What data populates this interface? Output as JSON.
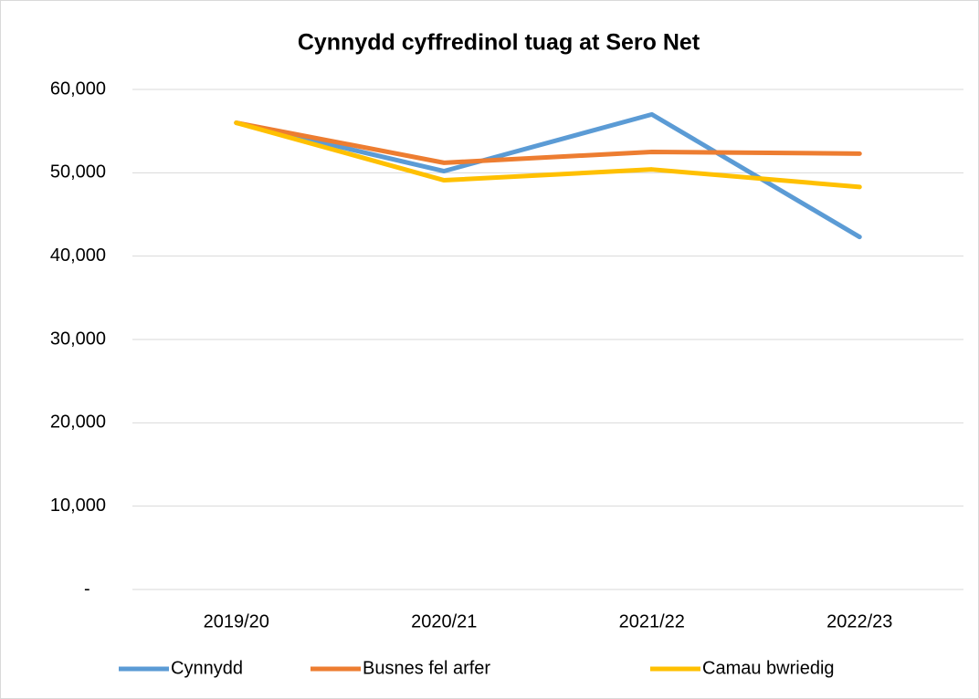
{
  "chart_data": {
    "type": "line",
    "title": "Cynnydd cyffredinol tuag at Sero Net",
    "categories": [
      "2019/20",
      "2020/21",
      "2021/22",
      "2022/23"
    ],
    "series": [
      {
        "name": "Cynnydd",
        "color": "#5b9bd5",
        "values": [
          56000,
          50200,
          57000,
          42300
        ]
      },
      {
        "name": "Busnes fel arfer",
        "color": "#ed7d31",
        "values": [
          56000,
          51200,
          52500,
          52300
        ]
      },
      {
        "name": "Camau bwriedig",
        "color": "#ffc000",
        "values": [
          56000,
          49100,
          50400,
          48300
        ]
      }
    ],
    "ylim": [
      0,
      60000
    ],
    "yticks": [
      {
        "value": 0,
        "label": "-"
      },
      {
        "value": 10000,
        "label": "10,000"
      },
      {
        "value": 20000,
        "label": "20,000"
      },
      {
        "value": 30000,
        "label": "30,000"
      },
      {
        "value": 40000,
        "label": "40,000"
      },
      {
        "value": 50000,
        "label": "50,000"
      },
      {
        "value": 60000,
        "label": "60,000"
      }
    ],
    "grid": true,
    "legend": "bottom"
  }
}
